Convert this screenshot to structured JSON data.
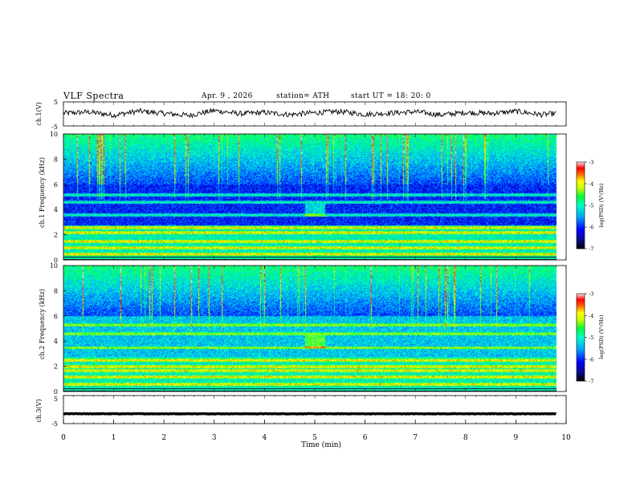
{
  "header": {
    "title": "VLF Spectra",
    "date": "Apr. 9 , 2026",
    "station": "station= ATH",
    "start": "start UT = 18: 20: 0"
  },
  "colors": {
    "colormap": [
      "#0a0a6e",
      "#0000ff",
      "#0a84ff",
      "#00e0ff",
      "#00ff64",
      "#b4ff00",
      "#ffff00",
      "#ff8000",
      "#ff0000",
      "#ffb4b4"
    ],
    "waveform": "#000000",
    "axis": "#000000"
  },
  "chart_data": [
    {
      "type": "line",
      "name": "ch1-waveform",
      "ylabel": "ch.1(V)",
      "ylim": [
        -5,
        5
      ],
      "yticks": [
        "5",
        "-5"
      ],
      "xlim": [
        0,
        10
      ],
      "x": [
        0,
        0.5,
        1,
        1.5,
        2,
        2.5,
        3,
        3.5,
        4,
        4.5,
        5,
        5.5,
        6,
        6.5,
        7,
        7.5,
        8,
        8.5,
        9,
        9.5,
        9.8
      ],
      "y": [
        0.3,
        0.8,
        -0.5,
        1.2,
        0.2,
        -0.6,
        1.4,
        0.1,
        0.6,
        -0.3,
        0.5,
        1.0,
        -0.2,
        0.4,
        0.9,
        -0.4,
        0.6,
        0.2,
        1.1,
        -0.3,
        0.2
      ]
    },
    {
      "type": "heatmap",
      "name": "ch1-spectrogram",
      "ylabel": "ch.1 Frequency (kHz)",
      "xlim": [
        0,
        10
      ],
      "ylim": [
        0,
        10
      ],
      "yticks": [
        "0",
        "2",
        "4",
        "6",
        "8",
        "10"
      ],
      "colorbar": {
        "label": "log(PSD) (V²/Hz)",
        "range": [
          -7,
          -3
        ],
        "ticks": [
          "-3",
          "-4",
          "-5",
          "-6",
          "-7"
        ]
      },
      "bands_khz": [
        0.5,
        1.0,
        1.5,
        2.2,
        2.6,
        3.6,
        4.6,
        5.2
      ]
    },
    {
      "type": "heatmap",
      "name": "ch2-spectrogram",
      "ylabel": "ch.2 Frequency (kHz)",
      "xlim": [
        0,
        10
      ],
      "ylim": [
        0,
        10
      ],
      "yticks": [
        "0",
        "2",
        "4",
        "6",
        "8",
        "10"
      ],
      "colorbar": {
        "label": "log(PSD) (V²/Hz)",
        "range": [
          -7,
          -3
        ],
        "ticks": [
          "-3",
          "-4",
          "-5",
          "-6",
          "-7"
        ]
      },
      "bands_khz": [
        0.6,
        1.2,
        1.7,
        2.0,
        2.5,
        3.5,
        4.6,
        5.3
      ]
    },
    {
      "type": "line",
      "name": "ch3-waveform",
      "ylabel": "ch.3(V)",
      "ylim": [
        -5,
        5
      ],
      "yticks": [
        "5",
        "-5"
      ],
      "xlim": [
        0,
        10
      ],
      "x": [
        0,
        9.8
      ],
      "y": [
        -1.5,
        -1.5
      ]
    }
  ],
  "x_axis": {
    "label": "Time (min)",
    "ticks": [
      "0",
      "1",
      "2",
      "3",
      "4",
      "5",
      "6",
      "7",
      "8",
      "9",
      "10"
    ]
  }
}
